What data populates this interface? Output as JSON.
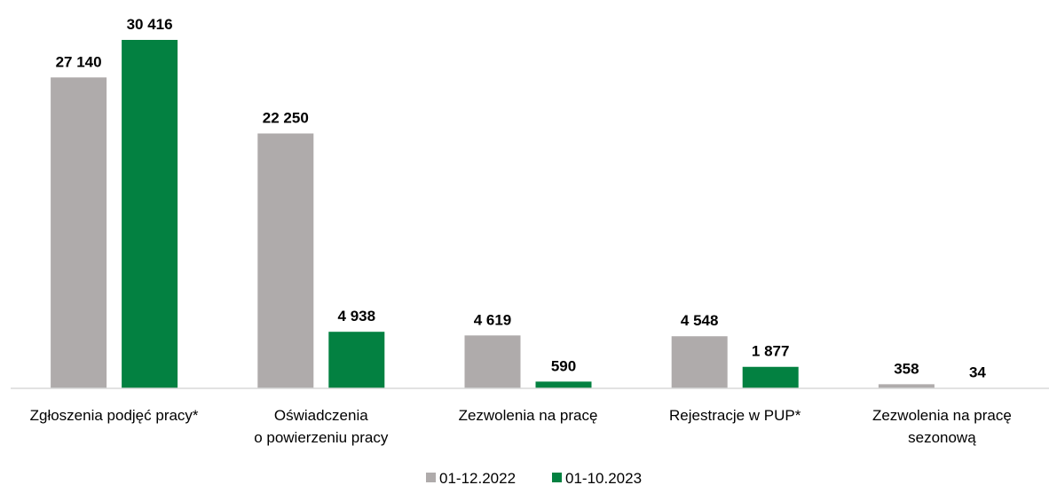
{
  "chart_data": {
    "type": "bar",
    "categories": [
      "Zgłoszenia podjęć pracy*",
      "Oświadczenia\no powierzeniu pracy",
      "Zezwolenia na pracę",
      "Rejestracje w PUP*",
      "Zezwolenia na pracę\nsezonową"
    ],
    "series": [
      {
        "name": "01-12.2022",
        "color": "#afabab",
        "values": [
          27140,
          22250,
          4619,
          4548,
          358
        ],
        "value_labels": [
          "27 140",
          "22 250",
          "4 619",
          "4 548",
          "358"
        ]
      },
      {
        "name": "01-10.2023",
        "color": "#038141",
        "values": [
          30416,
          4938,
          590,
          1877,
          34
        ],
        "value_labels": [
          "30 416",
          "4 938",
          "590",
          "1 877",
          "34"
        ]
      }
    ],
    "legend": "bottom"
  }
}
